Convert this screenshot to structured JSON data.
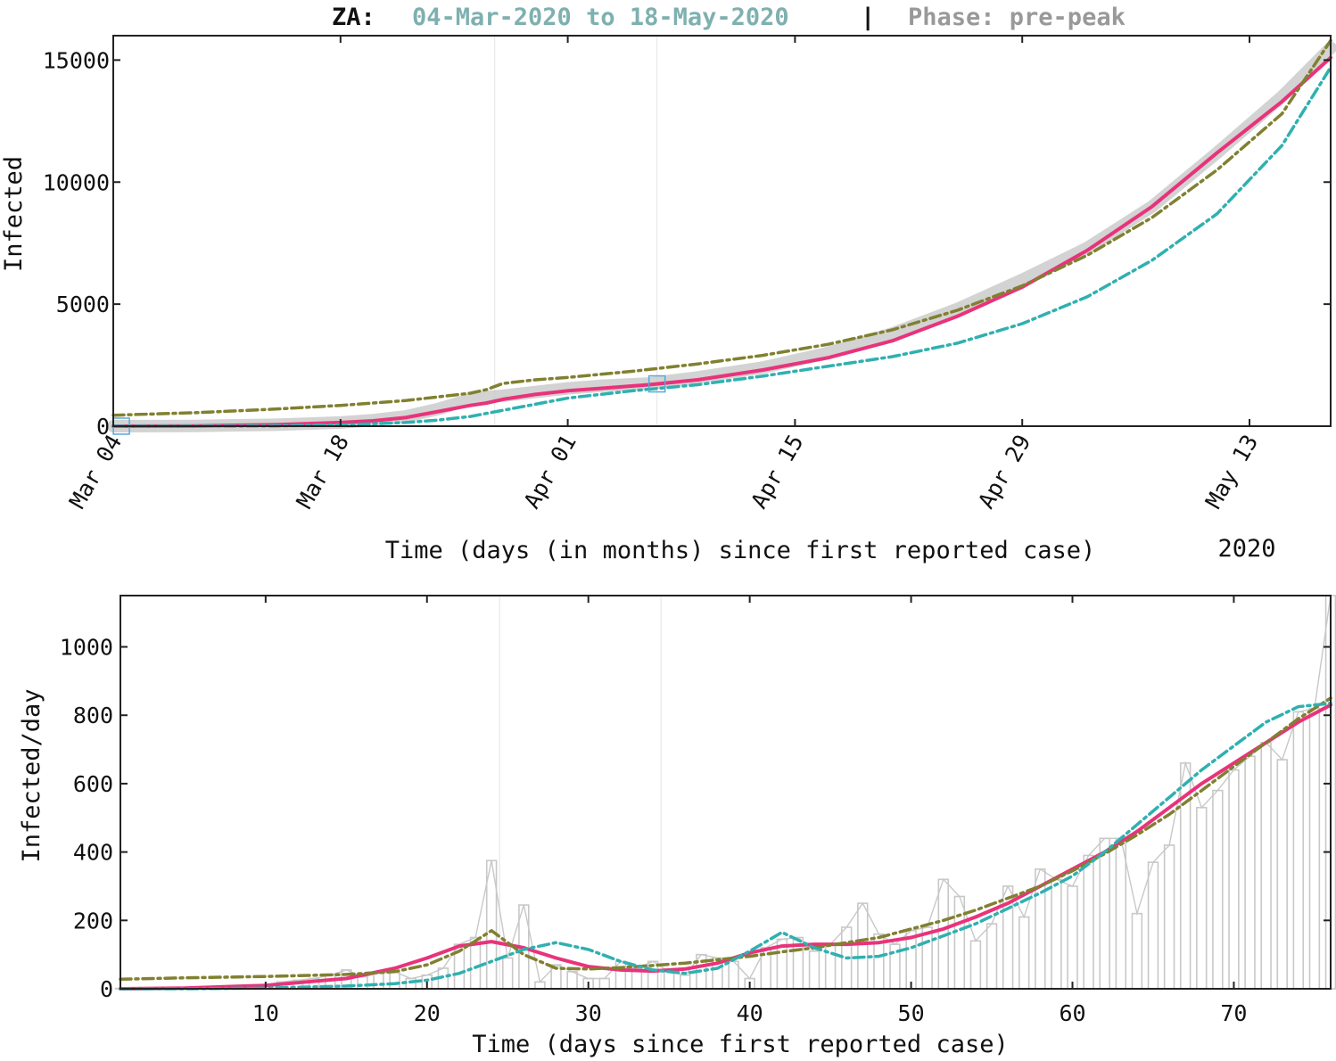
{
  "title": {
    "country": "ZA:",
    "range": "04-Mar-2020 to 18-May-2020",
    "separator": "|",
    "phase": "Phase: pre-peak"
  },
  "colors": {
    "fit": "#e8337a",
    "model_upper": "#808030",
    "model_lower": "#30b0b0",
    "data": "#c8c8c8",
    "range_text": "#7fb0b0",
    "phase_text": "#999999",
    "marker": "#55aadd"
  },
  "chart_data": [
    {
      "type": "line",
      "title": "",
      "xlabel": "Time (days (in months) since first reported case)",
      "ylabel": "Infected",
      "year_label": "2020",
      "x_tick_labels": [
        "Mar 04",
        "Mar 18",
        "Apr 01",
        "Apr 15",
        "Apr 29",
        "May 13"
      ],
      "x_ticks_day": [
        0,
        14,
        28,
        42,
        56,
        70
      ],
      "y_ticks": [
        0,
        5000,
        10000,
        15000
      ],
      "xlim_day": [
        0,
        75
      ],
      "ylim": [
        0,
        16000
      ],
      "vlines_day": [
        23.5,
        33.5
      ],
      "marker_days": [
        0.5,
        33.5
      ],
      "series": [
        {
          "role": "data",
          "x": [
            0,
            5,
            10,
            14,
            16,
            18,
            20,
            22,
            23,
            24,
            26,
            28,
            30,
            33,
            36,
            40,
            44,
            48,
            52,
            56,
            60,
            64,
            68,
            72,
            75
          ],
          "y": [
            0,
            10,
            60,
            150,
            250,
            400,
            700,
            1100,
            1200,
            1250,
            1400,
            1550,
            1650,
            1750,
            2000,
            2400,
            3000,
            3800,
            4800,
            6000,
            7300,
            9000,
            11200,
            13500,
            15500
          ]
        },
        {
          "role": "fit",
          "x": [
            0,
            5,
            10,
            14,
            16,
            18,
            20,
            22,
            23,
            24,
            26,
            28,
            30,
            33,
            36,
            40,
            44,
            48,
            52,
            56,
            60,
            64,
            68,
            72,
            75
          ],
          "y": [
            0,
            10,
            60,
            150,
            220,
            350,
            600,
            850,
            950,
            1100,
            1300,
            1450,
            1550,
            1700,
            1900,
            2300,
            2800,
            3500,
            4500,
            5700,
            7200,
            9000,
            11200,
            13300,
            15100
          ]
        },
        {
          "role": "upper",
          "x": [
            0,
            5,
            10,
            14,
            18,
            22,
            23,
            24,
            26,
            28,
            32,
            36,
            40,
            44,
            48,
            52,
            56,
            60,
            64,
            68,
            72,
            75
          ],
          "y": [
            450,
            550,
            700,
            850,
            1050,
            1350,
            1500,
            1750,
            1900,
            2000,
            2250,
            2550,
            2900,
            3350,
            3950,
            4750,
            5750,
            7000,
            8550,
            10500,
            12800,
            15800
          ]
        },
        {
          "role": "lower",
          "x": [
            0,
            5,
            10,
            14,
            18,
            20,
            22,
            24,
            26,
            28,
            32,
            36,
            40,
            44,
            48,
            52,
            56,
            60,
            64,
            68,
            72,
            75
          ],
          "y": [
            0,
            0,
            10,
            50,
            150,
            250,
            400,
            650,
            900,
            1150,
            1450,
            1700,
            2050,
            2450,
            2850,
            3400,
            4200,
            5300,
            6800,
            8700,
            11500,
            14700
          ]
        }
      ]
    },
    {
      "type": "bar",
      "title": "",
      "xlabel": "Time (days since first reported case)",
      "ylabel": "Infected/day",
      "x_ticks": [
        10,
        20,
        30,
        40,
        50,
        60,
        70
      ],
      "y_ticks": [
        0,
        200,
        400,
        600,
        800,
        1000
      ],
      "xlim": [
        1,
        76
      ],
      "ylim": [
        0,
        1150
      ],
      "vlines": [
        24.5,
        34.5
      ],
      "bars": {
        "x": [
          1,
          2,
          3,
          4,
          5,
          6,
          7,
          8,
          9,
          10,
          11,
          12,
          13,
          14,
          15,
          16,
          17,
          18,
          19,
          20,
          21,
          22,
          23,
          24,
          25,
          26,
          27,
          28,
          29,
          30,
          31,
          32,
          33,
          34,
          35,
          36,
          37,
          38,
          39,
          40,
          41,
          42,
          43,
          44,
          45,
          46,
          47,
          48,
          49,
          50,
          51,
          52,
          53,
          54,
          55,
          56,
          57,
          58,
          59,
          60,
          61,
          62,
          63,
          64,
          65,
          66,
          67,
          68,
          69,
          70,
          71,
          72,
          73,
          74,
          75,
          76
        ],
        "values": [
          1,
          1,
          2,
          3,
          4,
          5,
          5,
          6,
          8,
          12,
          20,
          25,
          30,
          40,
          55,
          35,
          45,
          50,
          30,
          40,
          60,
          130,
          150,
          375,
          90,
          245,
          20,
          70,
          50,
          30,
          30,
          80,
          60,
          80,
          50,
          40,
          100,
          90,
          80,
          30,
          120,
          145,
          150,
          110,
          130,
          180,
          250,
          160,
          130,
          170,
          180,
          320,
          270,
          140,
          190,
          300,
          210,
          350,
          320,
          300,
          390,
          440,
          440,
          220,
          370,
          420,
          660,
          530,
          580,
          640,
          680,
          720,
          670,
          810,
          820,
          1150
        ]
      },
      "series": [
        {
          "role": "fit",
          "x": [
            1,
            5,
            10,
            15,
            18,
            20,
            22,
            24,
            26,
            28,
            30,
            32,
            34,
            36,
            38,
            40,
            42,
            44,
            46,
            48,
            50,
            52,
            54,
            56,
            58,
            60,
            62,
            64,
            66,
            68,
            70,
            72,
            74,
            76
          ],
          "y": [
            0,
            2,
            10,
            30,
            60,
            90,
            125,
            138,
            120,
            90,
            65,
            55,
            52,
            58,
            75,
            105,
            125,
            130,
            130,
            135,
            150,
            175,
            210,
            250,
            300,
            350,
            400,
            460,
            530,
            600,
            660,
            720,
            780,
            830
          ]
        },
        {
          "role": "upper",
          "x": [
            1,
            5,
            10,
            15,
            18,
            20,
            22,
            24,
            26,
            28,
            30,
            32,
            34,
            36,
            38,
            40,
            42,
            44,
            46,
            48,
            50,
            52,
            54,
            56,
            58,
            60,
            62,
            64,
            66,
            68,
            70,
            72,
            74,
            76
          ],
          "y": [
            28,
            32,
            36,
            42,
            50,
            70,
            110,
            170,
            100,
            60,
            58,
            62,
            68,
            75,
            85,
            95,
            108,
            120,
            135,
            150,
            175,
            200,
            230,
            265,
            300,
            345,
            395,
            450,
            510,
            580,
            650,
            720,
            790,
            850
          ]
        },
        {
          "role": "lower",
          "x": [
            1,
            5,
            10,
            15,
            18,
            20,
            22,
            24,
            26,
            28,
            30,
            32,
            34,
            36,
            38,
            40,
            42,
            44,
            46,
            48,
            50,
            52,
            54,
            56,
            58,
            60,
            62,
            64,
            66,
            68,
            70,
            72,
            74,
            76
          ],
          "y": [
            0,
            0,
            2,
            8,
            15,
            25,
            45,
            80,
            115,
            135,
            115,
            80,
            55,
            45,
            60,
            110,
            165,
            120,
            90,
            95,
            120,
            155,
            190,
            235,
            280,
            330,
            400,
            480,
            560,
            640,
            710,
            780,
            825,
            835
          ]
        }
      ]
    }
  ]
}
